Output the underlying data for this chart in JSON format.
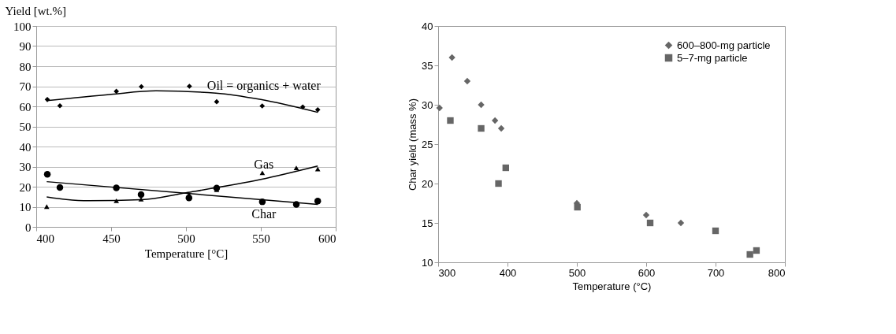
{
  "chart_data": [
    {
      "type": "scatter",
      "ylabel": "Yield [wt.%]",
      "xlabel": "Temperature [°C]",
      "xlim": [
        400,
        600
      ],
      "xticks": [
        400,
        450,
        500,
        550,
        600
      ],
      "ylim": [
        0,
        100
      ],
      "yticks": [
        0,
        10,
        20,
        30,
        40,
        50,
        60,
        70,
        80,
        90,
        100
      ],
      "grid": "y",
      "legend": false,
      "series": [
        {
          "type": "scatter",
          "marker": "diamond",
          "color": "#000000",
          "x": [
            407.4,
            415.8,
            453.5,
            470.2,
            502.3,
            520.5,
            550.9,
            578,
            588
          ],
          "values": [
            63.4,
            60.3,
            67.5,
            69.8,
            70,
            62.3,
            60.2,
            59.7,
            58.3
          ]
        },
        {
          "type": "scatter",
          "marker": "circle",
          "color": "#000000",
          "x": [
            407.4,
            415.8,
            453.5,
            470,
            502,
            520.5,
            551,
            573.7,
            588
          ],
          "values": [
            26.2,
            19.6,
            19.4,
            16.1,
            14.4,
            19.3,
            12.5,
            11.2,
            12.8
          ]
        },
        {
          "type": "scatter",
          "marker": "triangle",
          "color": "#000000",
          "x": [
            407,
            453.5,
            470,
            502,
            520.5,
            551,
            573.7,
            588
          ],
          "values": [
            10.1,
            13,
            13.8,
            16.1,
            18.5,
            26.9,
            29.4,
            28.8
          ]
        },
        {
          "type": "line",
          "name": "Oil = organics + water",
          "color": "#000000",
          "x": [
            407,
            450,
            480,
            520,
            550,
            588
          ],
          "values": [
            62.8,
            66,
            67.7,
            66.6,
            63.4,
            57
          ]
        },
        {
          "type": "line",
          "name": "Char",
          "color": "#000000",
          "x": [
            407,
            588
          ],
          "values": [
            22.5,
            11.2
          ]
        },
        {
          "type": "line",
          "name": "Gas",
          "color": "#000000",
          "x": [
            407,
            420,
            435,
            470,
            500,
            550,
            588
          ],
          "values": [
            14.9,
            13.6,
            13,
            13.5,
            17,
            23.6,
            30.3
          ]
        }
      ]
    },
    {
      "type": "scatter",
      "ylabel": "Char yield (mass %)",
      "xlabel": "Temperature (°C)",
      "xlim": [
        300,
        800
      ],
      "xticks": [
        300,
        400,
        500,
        600,
        700,
        800
      ],
      "ylim": [
        10,
        40
      ],
      "yticks": [
        10,
        15,
        20,
        25,
        30,
        35,
        40
      ],
      "grid": false,
      "legend": "top right",
      "series": [
        {
          "name": "600–800-mg particle",
          "marker": "diamond",
          "color": "#666666",
          "x": [
            302,
            320,
            342,
            362,
            382,
            391,
            500,
            600,
            650
          ],
          "values": [
            29.6,
            36,
            33,
            30,
            28,
            27,
            17.5,
            16,
            15
          ]
        },
        {
          "name": "5–7-mg particle",
          "marker": "square",
          "color": "#666666",
          "x": [
            317.6,
            362,
            387,
            397.5,
            500.8,
            605.7,
            700,
            749.6,
            759
          ],
          "values": [
            28,
            27,
            20,
            22,
            17,
            15,
            14,
            11,
            11.5
          ]
        }
      ]
    }
  ]
}
